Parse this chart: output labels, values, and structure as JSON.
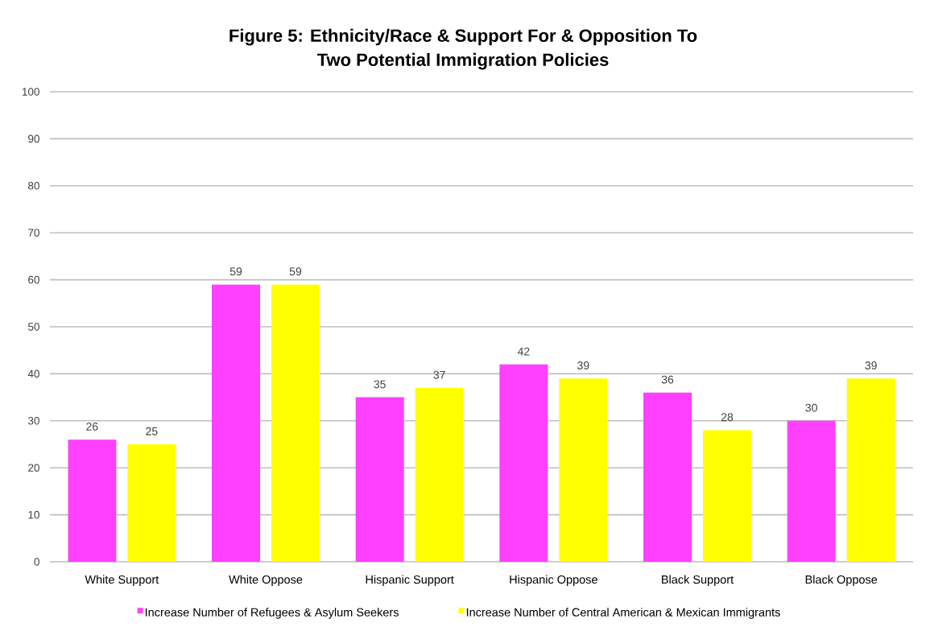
{
  "chart_data": {
    "type": "bar",
    "title": "Figure 5: Ethnicity/Race & Support For & Opposition To Two Potential Immigration Policies",
    "categories": [
      "White Support",
      "White Oppose",
      "Hispanic Support",
      "Hispanic Oppose",
      "Black Support",
      "Black Oppose"
    ],
    "series": [
      {
        "name": "Increase Number of Refugees & Asylum Seekers",
        "color": "#ff40ff",
        "values": [
          26,
          59,
          35,
          42,
          36,
          30
        ]
      },
      {
        "name": "Increase Number of Central American & Mexican Immigrants",
        "color": "#ffff00",
        "values": [
          25,
          59,
          37,
          39,
          28,
          39
        ]
      }
    ],
    "ylim": [
      0,
      100
    ],
    "yticks": [
      0,
      10,
      20,
      30,
      40,
      50,
      60,
      70,
      80,
      90,
      100
    ],
    "grid": "y",
    "data_labels": true,
    "legend": "bottom"
  }
}
